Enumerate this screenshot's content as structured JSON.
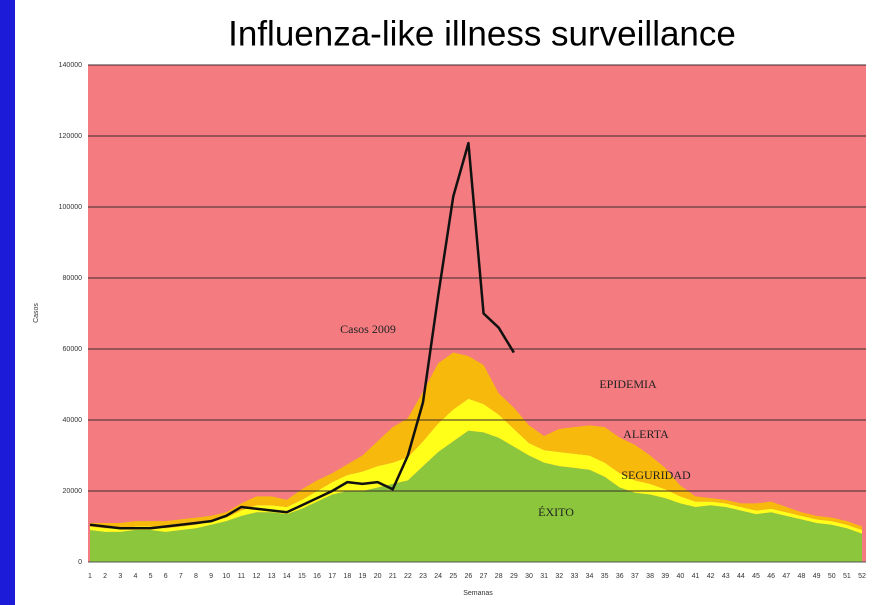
{
  "chart_data": {
    "type": "area",
    "title": "Influenza-like illness surveillance",
    "y_label": "Casos",
    "x_label": "Semanas",
    "background_label": "EPIDEMIA",
    "background_color": "#f47c80",
    "categories": [
      "1",
      "2",
      "3",
      "4",
      "5",
      "6",
      "7",
      "8",
      "9",
      "10",
      "11",
      "12",
      "13",
      "14",
      "15",
      "16",
      "17",
      "18",
      "19",
      "20",
      "21",
      "22",
      "23",
      "24",
      "25",
      "26",
      "27",
      "28",
      "29",
      "30",
      "31",
      "32",
      "33",
      "34",
      "35",
      "36",
      "37",
      "38",
      "39",
      "40",
      "41",
      "42",
      "43",
      "44",
      "45",
      "46",
      "47",
      "48",
      "49",
      "50",
      "51",
      "52"
    ],
    "series": [
      {
        "name": "ÉXITO",
        "color": "#8cc63c",
        "kind": "stack",
        "values": [
          9000,
          8500,
          8500,
          9000,
          9000,
          8500,
          9000,
          9500,
          10500,
          11500,
          13000,
          14000,
          14000,
          13500,
          15000,
          17000,
          19000,
          20000,
          20000,
          21000,
          22000,
          23000,
          27000,
          31000,
          34000,
          37000,
          36500,
          35000,
          32500,
          30000,
          28000,
          27000,
          26500,
          26000,
          24000,
          21000,
          19500,
          19000,
          18000,
          16500,
          15500,
          16000,
          15500,
          14500,
          13500,
          14000,
          13000,
          12000,
          11000,
          10500,
          9500,
          8000
        ]
      },
      {
        "name": "SEGURIDAD",
        "color": "#ffff1a",
        "kind": "stack",
        "values": [
          1000,
          1000,
          1000,
          1000,
          1000,
          1000,
          1000,
          1000,
          1000,
          1000,
          1500,
          2000,
          2000,
          2000,
          2500,
          3000,
          3500,
          4500,
          5500,
          6000,
          6000,
          6500,
          7000,
          8000,
          9000,
          9000,
          8000,
          6500,
          5000,
          3500,
          3500,
          4000,
          4000,
          4000,
          4000,
          4000,
          3500,
          3000,
          2500,
          2000,
          1500,
          1000,
          1000,
          1000,
          1000,
          1000,
          1000,
          1000,
          1000,
          1000,
          1000,
          1000
        ]
      },
      {
        "name": "ALERTA",
        "color": "#f6b90c",
        "kind": "stack",
        "values": [
          1000,
          1500,
          1500,
          1500,
          1500,
          2000,
          2000,
          2000,
          1500,
          1500,
          2000,
          2500,
          2500,
          2000,
          3000,
          3000,
          2500,
          3000,
          4500,
          7000,
          10000,
          11000,
          14000,
          17000,
          16000,
          12000,
          11000,
          6000,
          6000,
          5000,
          4000,
          6500,
          7500,
          8500,
          10000,
          10000,
          10000,
          8000,
          6000,
          3000,
          1500,
          1000,
          1000,
          1000,
          2000,
          2000,
          1500,
          1000,
          1000,
          1000,
          1000,
          1000
        ]
      },
      {
        "name": "Casos 2009",
        "color": "#111111",
        "kind": "line",
        "values": [
          10500,
          10000,
          9500,
          9500,
          9500,
          10000,
          10500,
          11000,
          11500,
          13000,
          15500,
          15000,
          14500,
          14000,
          16000,
          18000,
          20000,
          22500,
          22000,
          22500,
          20500,
          30000,
          45000,
          75000,
          103000,
          118000,
          70000,
          66000,
          59000,
          null,
          null,
          null,
          null,
          null,
          null,
          null,
          null,
          null,
          null,
          null,
          null,
          null,
          null,
          null,
          null,
          null,
          null,
          null,
          null,
          null,
          null,
          null
        ]
      }
    ],
    "ylim": [
      0,
      140000
    ],
    "yticks": [
      0,
      20000,
      40000,
      60000,
      80000,
      100000,
      120000,
      140000
    ],
    "grid": true
  }
}
